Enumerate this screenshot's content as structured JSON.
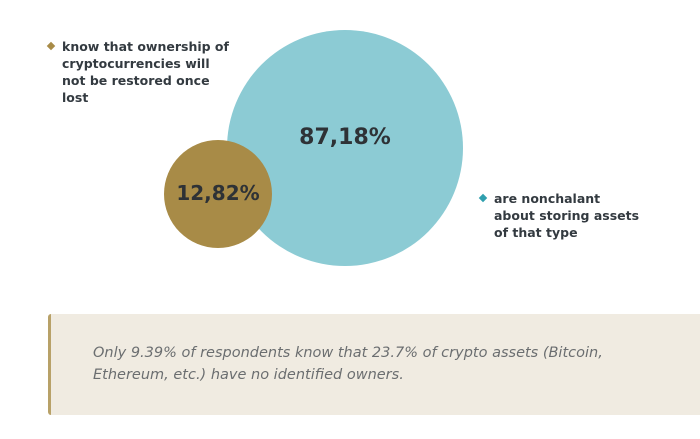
{
  "chart_data": {
    "type": "bubble",
    "series": [
      {
        "label": "87,18%",
        "value": 87.18,
        "color": "#8ccbd4",
        "legend": "are nonchalant about storing assets of that type"
      },
      {
        "label": "12,82%",
        "value": 12.82,
        "color": "#a88b47",
        "legend": "know that ownership of cryptocurrencies will not be restored once lost"
      }
    ]
  },
  "colors": {
    "legend_gold": "#a88b47",
    "legend_teal": "#2f9fae",
    "callout_bg": "#f0ebe1",
    "callout_border": "#b8a168"
  },
  "callout": {
    "text": "Only 9.39% of respondents know that 23.7% of crypto assets (Bitcoin, Ethereum, etc.) have no identified owners."
  }
}
